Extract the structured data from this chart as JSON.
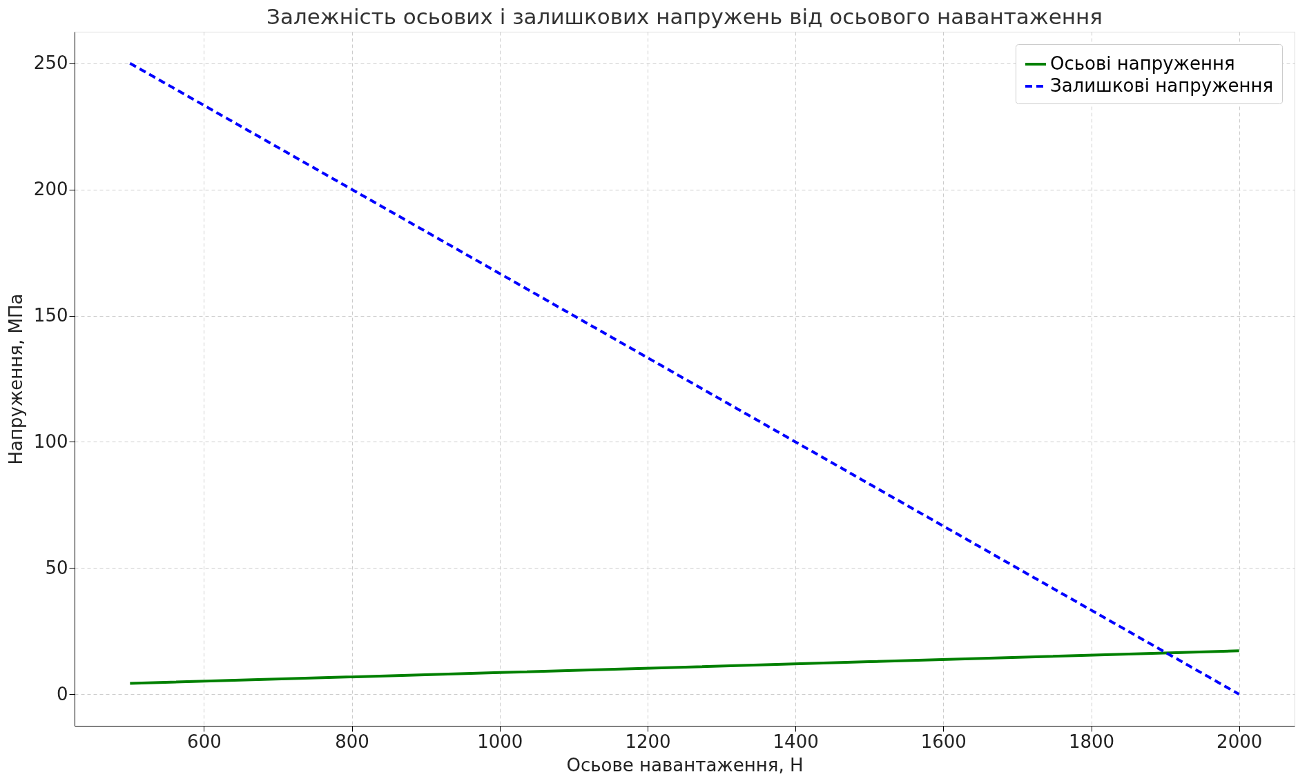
{
  "chart_data": {
    "type": "line",
    "title": "Залежність осьових і залишкових напружень від осьового навантаження",
    "xlabel": "Осьове навантаження, Н",
    "ylabel": "Напруження, МПа",
    "x": [
      500,
      1000,
      1500,
      2000
    ],
    "series": [
      {
        "name": "Осьові напруження",
        "color": "#008000",
        "line_style": "solid",
        "values": [
          4.3,
          8.6,
          12.9,
          17.2
        ]
      },
      {
        "name": "Залишкові напруження",
        "color": "#0000ff",
        "line_style": "dashed",
        "values": [
          250,
          166.7,
          83.3,
          0
        ]
      }
    ],
    "xlim": [
      425,
      2075
    ],
    "ylim": [
      -12.5,
      262.5
    ],
    "xticks": [
      600,
      800,
      1000,
      1200,
      1400,
      1600,
      1800,
      2000
    ],
    "yticks": [
      0,
      50,
      100,
      150,
      200,
      250
    ],
    "grid": true,
    "legend": "top right",
    "marker": "none"
  }
}
